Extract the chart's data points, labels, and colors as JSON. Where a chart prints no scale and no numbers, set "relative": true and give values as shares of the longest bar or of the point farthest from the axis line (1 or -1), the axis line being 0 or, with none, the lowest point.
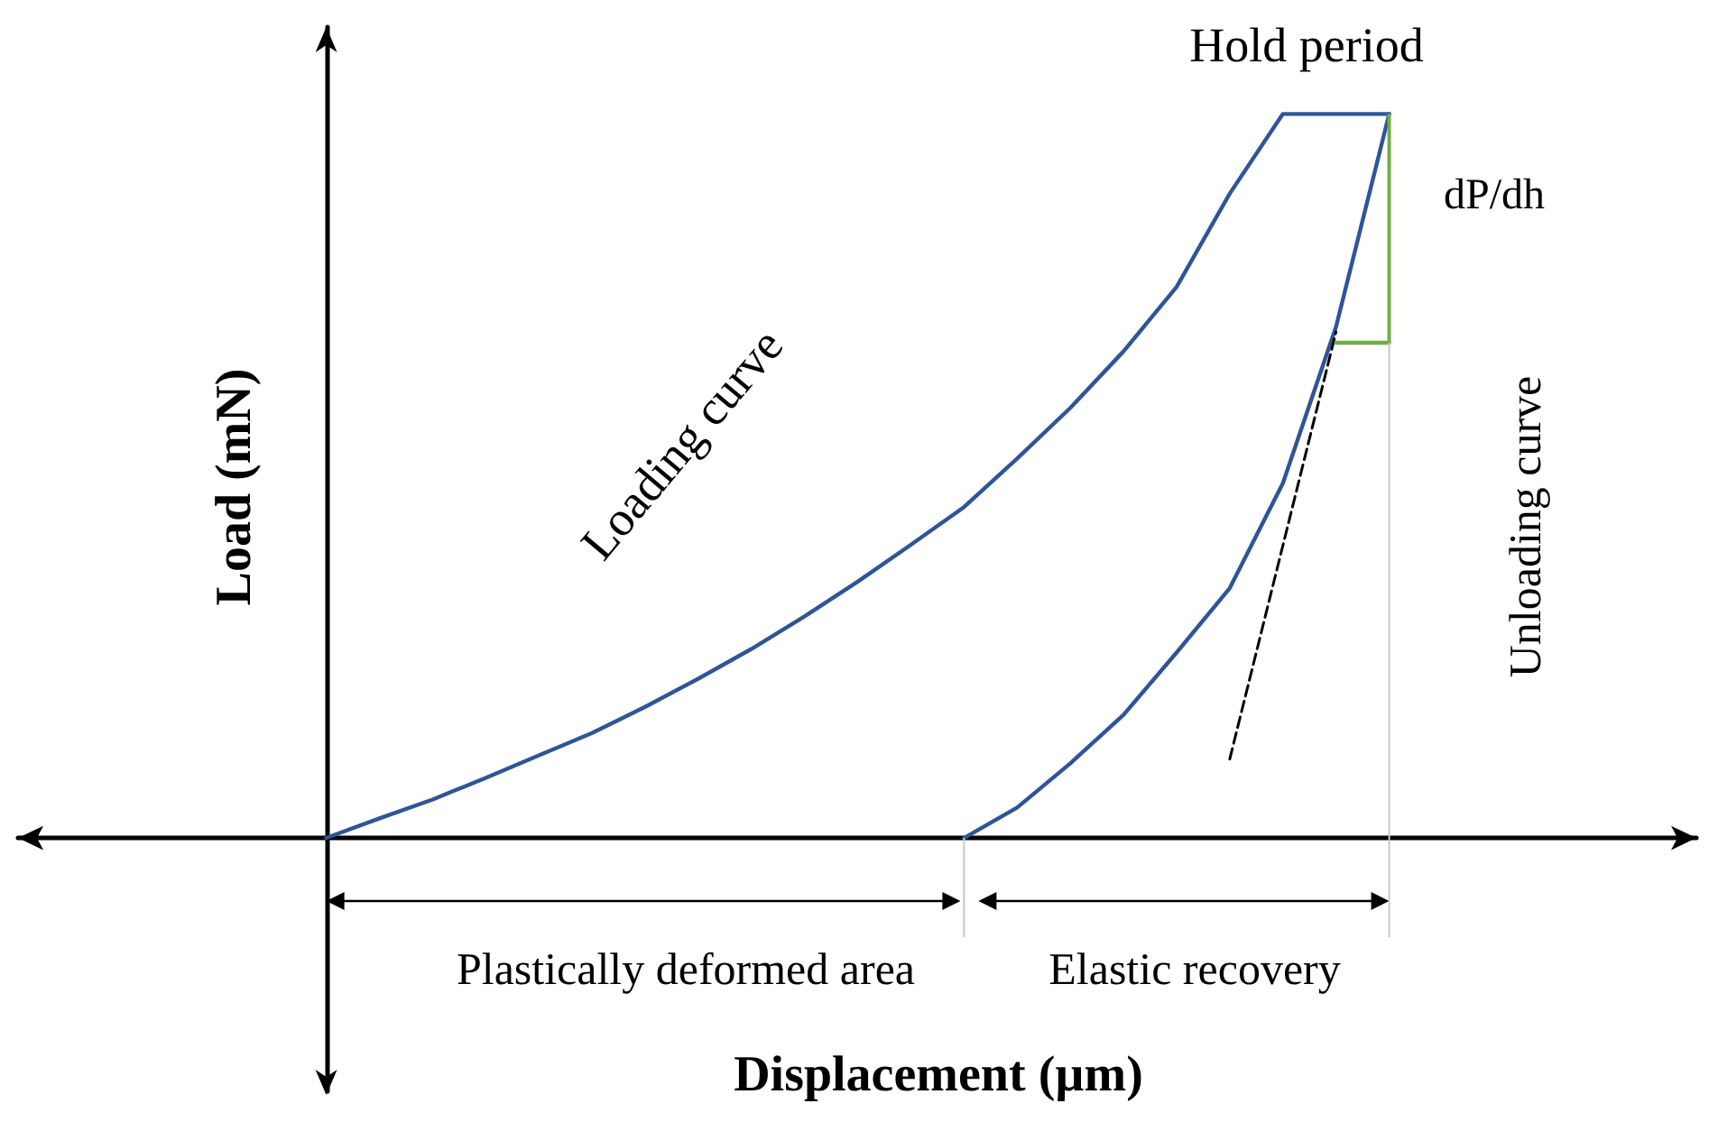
{
  "chart_data": {
    "type": "line",
    "relative": true,
    "xlabel": "Displacement (µm)",
    "ylabel": "Load (mN)",
    "grid": false,
    "marker": "none",
    "annotations": [
      "Hold period",
      "dP/dh",
      "Loading curve",
      "Unloading curve",
      "Plastically deformed area",
      "Elastic recovery"
    ],
    "categories": [
      null,
      null,
      null,
      null,
      null,
      null,
      null,
      null,
      null,
      null,
      null,
      null,
      null,
      null,
      null,
      null,
      null,
      null,
      null,
      null,
      null
    ],
    "series": [
      {
        "color": "#2f5597",
        "line_style": "solid",
        "values": [
          0,
          0.027,
          0.053,
          0.083,
          0.114,
          0.145,
          0.181,
          0.22,
          0.261,
          0.306,
          0.354,
          0.405,
          0.457,
          0.524,
          0.594,
          0.672,
          0.761,
          0.89,
          1,
          1,
          1
        ]
      },
      {
        "color": "#2f5597",
        "line_style": "solid",
        "values": [
          null,
          null,
          null,
          null,
          null,
          null,
          null,
          null,
          null,
          null,
          null,
          null,
          0,
          0.042,
          0.103,
          0.17,
          0.256,
          0.345,
          0.49,
          0.706,
          1
        ]
      },
      {
        "color": "#000000",
        "line_style": "dashed",
        "values": [
          null,
          null,
          null,
          null,
          null,
          null,
          null,
          null,
          null,
          null,
          null,
          null,
          null,
          null,
          null,
          null,
          null,
          0.109,
          null,
          0.699,
          null
        ]
      },
      {
        "color": "#70ad47",
        "line_style": "solid",
        "values": [
          null,
          null,
          null,
          null,
          null,
          null,
          null,
          null,
          null,
          null,
          null,
          null,
          null,
          null,
          null,
          null,
          null,
          null,
          null,
          0.684,
          0.684
        ]
      }
    ]
  }
}
